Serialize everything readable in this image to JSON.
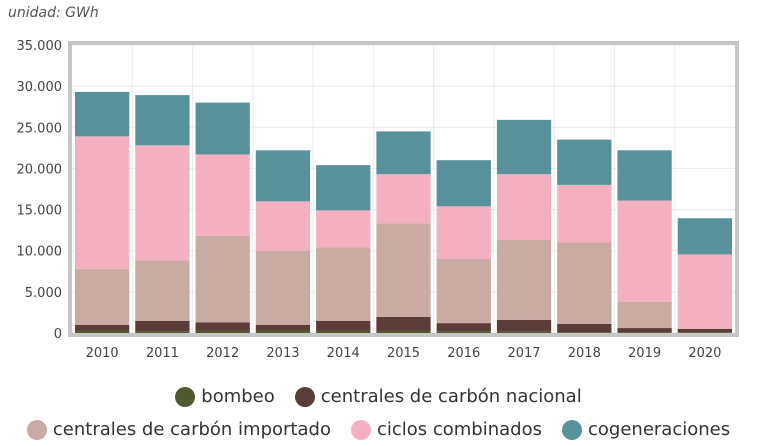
{
  "chart_data": {
    "type": "bar",
    "stacked": true,
    "unit_label": "unidad: GWh",
    "categories": [
      "2010",
      "2011",
      "2012",
      "2013",
      "2014",
      "2015",
      "2016",
      "2017",
      "2018",
      "2019",
      "2020"
    ],
    "yticks": [
      0,
      5000,
      10000,
      15000,
      20000,
      25000,
      30000,
      35000
    ],
    "ytick_labels": [
      "0",
      "5.000",
      "10.000",
      "15.000",
      "20.000",
      "25.000",
      "30.000",
      "35.000"
    ],
    "ylim": [
      0,
      35000
    ],
    "grid": true,
    "legend_position": "bottom",
    "series": [
      {
        "name": "bombeo",
        "color": "#4f5b2e",
        "values": [
          300,
          200,
          250,
          300,
          250,
          250,
          200,
          150,
          100,
          100,
          100
        ]
      },
      {
        "name": "centrales de carbón nacional",
        "color": "#5a3c38",
        "values": [
          700,
          1260,
          1050,
          700,
          1210,
          1700,
          1000,
          1450,
          1000,
          500,
          400
        ]
      },
      {
        "name": "centrales de carbón importado",
        "color": "#c9aba3",
        "values": [
          6800,
          7350,
          10500,
          9000,
          8940,
          11350,
          7800,
          9700,
          9900,
          3200,
          50
        ]
      },
      {
        "name": "ciclos combinados",
        "color": "#f4afc1",
        "values": [
          16100,
          14000,
          9900,
          6000,
          4500,
          6000,
          6400,
          8000,
          7000,
          12300,
          9000
        ]
      },
      {
        "name": "cogeneraciones",
        "color": "#58919a",
        "values": [
          5400,
          6100,
          6300,
          6200,
          5500,
          5200,
          5600,
          6600,
          5500,
          6100,
          4400
        ]
      }
    ]
  }
}
